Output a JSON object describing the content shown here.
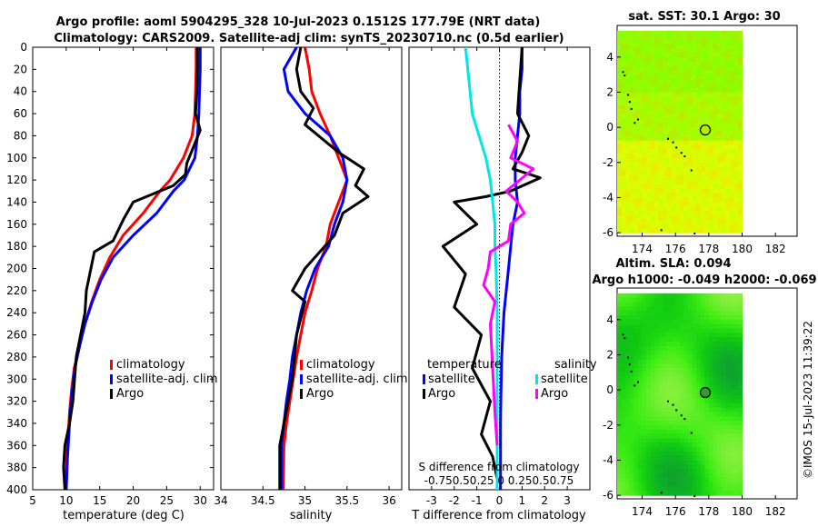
{
  "titles": {
    "line1": "Argo profile: aoml 5904295_328 10-Jul-2023 0.1512S 177.79E (NRT data)",
    "line2": "Climatology: CARS2009. Satellite-adj clim: synTS_20230710.nc (0.5d earlier)",
    "sst": "sat. SST: 30.1 Argo: 30",
    "sla1": "Altim. SLA: 0.094",
    "sla2": "Argo h1000: -0.049 h2000: -0.069"
  },
  "copyright": "©IMOS 15-Jul-2023 11:39:22",
  "colors": {
    "climatology": "#ff0000",
    "satellite": "#0000ff",
    "argo": "#000000",
    "t_sat": "#0000ff",
    "s_sat": "#00e5e5",
    "s_argo": "#ff00ff",
    "map_land": "#000000"
  },
  "depth_axis": {
    "ticks": [
      0,
      20,
      40,
      60,
      80,
      100,
      120,
      140,
      160,
      180,
      200,
      220,
      240,
      260,
      280,
      300,
      320,
      340,
      360,
      380,
      400
    ]
  },
  "legend_profile": [
    "climatology",
    "satellite-adj. clim",
    "Argo"
  ],
  "legend_diff": {
    "temperature_head": "temperature",
    "salinity_head": "salinity",
    "t_items": [
      "satellite",
      "Argo"
    ],
    "s_items": [
      "satellite",
      "Argo"
    ]
  },
  "diff_top_label1": "S difference from climatology",
  "diff_top_label2": "-0.750.50.25 0 0.250.50.75",
  "chart_data": [
    {
      "type": "line",
      "name": "temperature",
      "xlabel": "temperature (deg C)",
      "xlim": [
        5,
        32
      ],
      "ylim": [
        0,
        400
      ],
      "xticks": [
        5,
        10,
        15,
        20,
        25,
        30
      ],
      "series": [
        {
          "name": "climatology",
          "x": [
            29.4,
            29.4,
            29.3,
            29.2,
            28.8,
            27.5,
            25.5,
            24.0,
            21.5,
            18.5,
            16.5,
            15.0,
            13.8,
            12.8,
            12.0,
            11.2,
            10.8,
            10.5,
            10.3,
            10.1,
            9.9
          ],
          "y": [
            0,
            20,
            40,
            60,
            80,
            100,
            120,
            130,
            150,
            170,
            190,
            210,
            230,
            250,
            270,
            290,
            310,
            330,
            350,
            370,
            400
          ]
        },
        {
          "name": "satellite-adj. clim",
          "x": [
            30.0,
            30.0,
            29.9,
            29.8,
            29.6,
            29.2,
            27.6,
            26.0,
            23.5,
            20.0,
            17.0,
            15.2,
            13.9,
            12.8,
            12.0,
            11.3,
            10.9,
            10.6,
            10.4,
            10.2,
            10.0
          ],
          "y": [
            0,
            20,
            40,
            60,
            80,
            100,
            120,
            130,
            150,
            170,
            190,
            210,
            230,
            250,
            270,
            290,
            310,
            330,
            350,
            370,
            400
          ]
        },
        {
          "name": "Argo",
          "x": [
            29.6,
            29.6,
            29.5,
            29.3,
            30.0,
            29.0,
            28.0,
            27.8,
            26.0,
            20.0,
            18.6,
            17.0,
            14.2,
            13.0,
            12.8,
            11.5,
            11.0,
            10.5,
            9.8,
            9.6,
            9.8
          ],
          "y": [
            0,
            20,
            40,
            60,
            75,
            90,
            105,
            115,
            125,
            140,
            155,
            175,
            185,
            220,
            240,
            280,
            320,
            340,
            360,
            380,
            400
          ]
        }
      ]
    },
    {
      "type": "line",
      "name": "salinity",
      "xlabel": "salinity",
      "xlim": [
        34.0,
        36.15
      ],
      "ylim": [
        0,
        400
      ],
      "xticks": [
        34,
        34.5,
        35,
        35.5,
        36
      ],
      "series": [
        {
          "name": "climatology",
          "x": [
            35.0,
            35.05,
            35.08,
            35.18,
            35.3,
            35.4,
            35.5,
            35.4,
            35.3,
            35.25,
            35.15,
            35.08,
            35.0,
            34.95,
            34.9,
            34.86,
            34.82,
            34.78,
            34.75,
            34.74
          ],
          "y": [
            0,
            20,
            40,
            60,
            80,
            100,
            120,
            140,
            160,
            180,
            200,
            220,
            240,
            260,
            280,
            300,
            320,
            340,
            360,
            400
          ]
        },
        {
          "name": "satellite-adj. clim",
          "x": [
            34.9,
            34.75,
            34.8,
            35.0,
            35.3,
            35.45,
            35.5,
            35.45,
            35.35,
            35.28,
            35.12,
            35.02,
            34.95,
            34.9,
            34.85,
            34.82,
            34.78,
            34.75,
            34.72,
            34.72
          ],
          "y": [
            0,
            20,
            40,
            60,
            80,
            100,
            120,
            140,
            160,
            180,
            200,
            220,
            240,
            260,
            280,
            300,
            320,
            340,
            360,
            400
          ]
        },
        {
          "name": "Argo",
          "x": [
            34.95,
            34.9,
            34.95,
            35.1,
            35.0,
            35.4,
            35.7,
            35.6,
            35.75,
            35.45,
            35.35,
            35.0,
            34.85,
            35.0,
            34.9,
            34.85,
            34.8,
            34.75,
            34.7,
            34.7
          ],
          "y": [
            0,
            20,
            40,
            55,
            70,
            95,
            110,
            125,
            135,
            150,
            170,
            200,
            220,
            230,
            260,
            300,
            320,
            340,
            360,
            400
          ]
        }
      ]
    },
    {
      "type": "line",
      "name": "difference",
      "xlabel": "T difference from climatology",
      "xlim": [
        -4,
        4
      ],
      "ylim": [
        0,
        400
      ],
      "xticks": [
        -3,
        -2,
        -1,
        0,
        1,
        2,
        3
      ],
      "series": [
        {
          "name": "T satellite",
          "x": [
            1.0,
            1.0,
            0.9,
            0.9,
            0.8,
            0.7,
            0.7,
            0.8,
            0.6,
            0.5,
            0.4,
            0.3,
            0.2,
            0.15,
            0.1,
            0.08,
            0.06,
            0.05,
            0.05,
            0.05,
            0.05
          ],
          "y": [
            0,
            20,
            40,
            60,
            80,
            100,
            120,
            140,
            160,
            180,
            200,
            220,
            240,
            260,
            280,
            300,
            320,
            340,
            360,
            380,
            400
          ]
        },
        {
          "name": "T Argo",
          "x": [
            1.0,
            0.9,
            0.8,
            1.3,
            1.0,
            0.6,
            1.8,
            0.5,
            -0.6,
            -2.0,
            -1.0,
            -2.5,
            -1.5,
            -2.0,
            -0.8,
            -1.2,
            -0.4,
            -0.8,
            -0.3,
            -0.1,
            -0.1
          ],
          "y": [
            0,
            30,
            60,
            80,
            95,
            110,
            118,
            130,
            135,
            140,
            160,
            180,
            205,
            235,
            260,
            290,
            320,
            350,
            370,
            390,
            400
          ]
        },
        {
          "name": "S satellite",
          "x": [
            -1.5,
            -1.4,
            -1.3,
            -1.2,
            -0.9,
            -0.6,
            -0.4,
            -0.3,
            -0.2,
            -0.2,
            -0.15,
            -0.1,
            -0.1,
            -0.1,
            -0.1,
            -0.1,
            -0.1,
            -0.1
          ],
          "y": [
            0,
            20,
            40,
            60,
            80,
            100,
            120,
            140,
            160,
            180,
            200,
            240,
            280,
            300,
            320,
            340,
            360,
            400
          ]
        },
        {
          "name": "S Argo",
          "x": [
            0.4,
            0.8,
            0.5,
            1.5,
            0.9,
            0.3,
            0.8,
            1.1,
            0.5,
            0.4,
            -0.4,
            -0.5,
            -0.7,
            -0.2,
            -0.4,
            -0.3,
            -0.2,
            -0.1
          ],
          "y": [
            70,
            85,
            100,
            110,
            120,
            130,
            140,
            150,
            160,
            175,
            185,
            200,
            215,
            230,
            250,
            290,
            330,
            360
          ]
        }
      ]
    }
  ],
  "maps": {
    "xticks": [
      174,
      176,
      178,
      180,
      182
    ],
    "yticks": [
      4,
      2,
      0,
      -2,
      -4,
      -6
    ],
    "xlim": [
      172.5,
      183.3
    ],
    "ylim": [
      -6.2,
      5.8
    ],
    "argo_lon": 177.79,
    "argo_lat": -0.15
  }
}
